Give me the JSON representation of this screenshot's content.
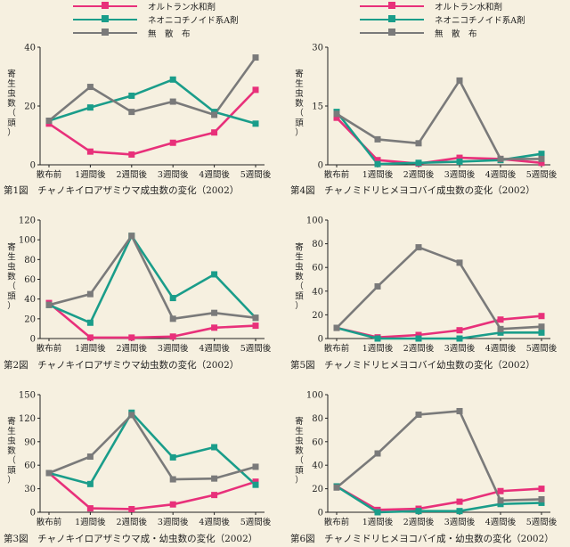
{
  "colors": {
    "orutoran": "#e8307a",
    "neonico": "#1a9d8a",
    "muzanpu": "#7a7a7a"
  },
  "legend": [
    {
      "label": "オルトラン水和剤",
      "color": "#e8307a"
    },
    {
      "label": "ネオニコチノイド系A剤",
      "color": "#1a9d8a"
    },
    {
      "label": "無　散　布",
      "color": "#7a7a7a"
    }
  ],
  "categories": [
    "散布前",
    "1週間後",
    "2週間後",
    "3週間後",
    "4週間後",
    "5週間後"
  ],
  "ylabel": "寄生虫数（頭）",
  "chart_data": [
    {
      "type": "line",
      "title": "第1図　チャノキイロアザミウマ成虫数の変化（2002）",
      "ylim": [
        0,
        40
      ],
      "yticks": [
        0,
        20,
        40
      ],
      "series": [
        {
          "name": "オルトラン水和剤",
          "values": [
            14,
            4.5,
            3.5,
            7.5,
            11,
            25.5
          ]
        },
        {
          "name": "ネオニコチノイド系A剤",
          "values": [
            15,
            19.5,
            23.5,
            29,
            18,
            14
          ]
        },
        {
          "name": "無　散　布",
          "values": [
            15,
            26.5,
            18,
            21.5,
            17,
            36.5
          ]
        }
      ]
    },
    {
      "type": "line",
      "title": "第2図　チャノキイロアザミウマ幼虫数の変化（2002）",
      "ylim": [
        0,
        120
      ],
      "yticks": [
        0,
        20,
        40,
        60,
        80,
        100,
        120
      ],
      "series": [
        {
          "name": "オルトラン水和剤",
          "values": [
            36,
            1,
            1,
            2,
            11,
            13
          ]
        },
        {
          "name": "ネオニコチノイド系A剤",
          "values": [
            34,
            16,
            104,
            41,
            65,
            21
          ]
        },
        {
          "name": "無　散　布",
          "values": [
            34,
            45,
            104,
            20,
            26,
            21
          ]
        }
      ]
    },
    {
      "type": "line",
      "title": "第3図　チャノキイロアザミウマ成・幼虫数の変化（2002）",
      "ylim": [
        0,
        150
      ],
      "yticks": [
        0,
        30,
        60,
        90,
        120,
        150
      ],
      "series": [
        {
          "name": "オルトラン水和剤",
          "values": [
            50,
            5,
            4,
            10,
            22,
            39
          ]
        },
        {
          "name": "ネオニコチノイド系A剤",
          "values": [
            50,
            36,
            127,
            70,
            83,
            35
          ]
        },
        {
          "name": "無　散　布",
          "values": [
            50,
            71,
            124,
            42,
            43,
            58
          ]
        }
      ]
    },
    {
      "type": "line",
      "title": "第4図　チャノミドリヒメヨコバイ成虫数の変化（2002）",
      "ylim": [
        0,
        30
      ],
      "yticks": [
        0,
        15,
        30
      ],
      "series": [
        {
          "name": "オルトラン水和剤",
          "values": [
            12,
            1.2,
            0.3,
            1.8,
            1.5,
            0.5
          ]
        },
        {
          "name": "ネオニコチノイド系A剤",
          "values": [
            13.5,
            0.2,
            0.5,
            0.8,
            1.2,
            2.8
          ]
        },
        {
          "name": "無　散　布",
          "values": [
            13,
            6.5,
            5.5,
            21.5,
            1.5,
            1.5
          ]
        }
      ]
    },
    {
      "type": "line",
      "title": "第5図　チャノミドリヒメヨコバイ幼虫数の変化（2002）",
      "ylim": [
        0,
        100
      ],
      "yticks": [
        0,
        20,
        40,
        60,
        80,
        100
      ],
      "series": [
        {
          "name": "オルトラン水和剤",
          "values": [
            9,
            1,
            3,
            7,
            16,
            19
          ]
        },
        {
          "name": "ネオニコチノイド系A剤",
          "values": [
            9,
            0,
            0,
            0,
            5,
            5
          ]
        },
        {
          "name": "無　散　布",
          "values": [
            9,
            44,
            77,
            64,
            8,
            10
          ]
        }
      ]
    },
    {
      "type": "line",
      "title": "第6図　チャノミドリヒメヨコバイ成・幼虫数の変化（2002）",
      "ylim": [
        0,
        100
      ],
      "yticks": [
        0,
        20,
        40,
        60,
        80,
        100
      ],
      "series": [
        {
          "name": "オルトラン水和剤",
          "values": [
            22,
            2,
            3,
            9,
            18,
            20
          ]
        },
        {
          "name": "ネオニコチノイド系A剤",
          "values": [
            22,
            0,
            1,
            1,
            7,
            8
          ]
        },
        {
          "name": "無　散　布",
          "values": [
            21,
            50,
            83,
            86,
            10,
            11
          ]
        }
      ]
    }
  ]
}
